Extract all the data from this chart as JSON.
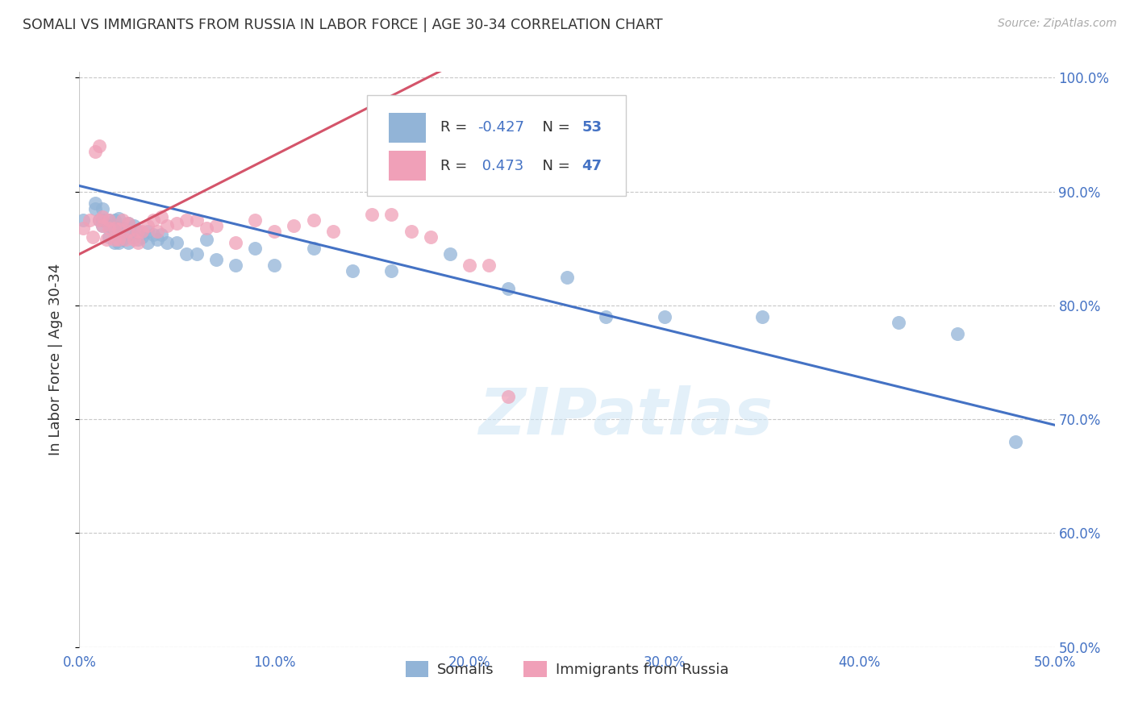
{
  "title": "SOMALI VS IMMIGRANTS FROM RUSSIA IN LABOR FORCE | AGE 30-34 CORRELATION CHART",
  "source": "Source: ZipAtlas.com",
  "ylabel": "In Labor Force | Age 30-34",
  "legend_labels": [
    "Somalis",
    "Immigrants from Russia"
  ],
  "R_somali": -0.427,
  "N_somali": 53,
  "R_russia": 0.473,
  "N_russia": 47,
  "x_min": 0.0,
  "x_max": 0.5,
  "y_min": 0.5,
  "y_max": 1.005,
  "x_ticks": [
    0.0,
    0.1,
    0.2,
    0.3,
    0.4,
    0.5
  ],
  "x_tick_labels": [
    "0.0%",
    "10.0%",
    "20.0%",
    "30.0%",
    "40.0%",
    "50.0%"
  ],
  "y_ticks": [
    0.5,
    0.6,
    0.7,
    0.8,
    0.9,
    1.0
  ],
  "y_tick_labels": [
    "50.0%",
    "60.0%",
    "70.0%",
    "80.0%",
    "90.0%",
    "100.0%"
  ],
  "background_color": "#ffffff",
  "grid_color": "#c8c8c8",
  "somali_color": "#92b4d7",
  "russia_color": "#f0a0b8",
  "somali_line_color": "#4472c4",
  "russia_line_color": "#d4546a",
  "watermark": "ZIPatlas",
  "somali_points_x": [
    0.002,
    0.008,
    0.008,
    0.01,
    0.012,
    0.012,
    0.012,
    0.015,
    0.015,
    0.015,
    0.018,
    0.018,
    0.018,
    0.02,
    0.02,
    0.02,
    0.02,
    0.022,
    0.022,
    0.025,
    0.025,
    0.025,
    0.028,
    0.028,
    0.03,
    0.03,
    0.032,
    0.035,
    0.035,
    0.038,
    0.04,
    0.042,
    0.045,
    0.05,
    0.055,
    0.06,
    0.065,
    0.07,
    0.08,
    0.09,
    0.1,
    0.12,
    0.14,
    0.16,
    0.19,
    0.22,
    0.25,
    0.27,
    0.3,
    0.35,
    0.42,
    0.45,
    0.48
  ],
  "somali_points_y": [
    0.875,
    0.885,
    0.89,
    0.875,
    0.87,
    0.875,
    0.885,
    0.86,
    0.87,
    0.875,
    0.855,
    0.865,
    0.875,
    0.855,
    0.862,
    0.868,
    0.876,
    0.858,
    0.868,
    0.855,
    0.862,
    0.872,
    0.86,
    0.87,
    0.858,
    0.865,
    0.86,
    0.855,
    0.865,
    0.862,
    0.858,
    0.862,
    0.855,
    0.855,
    0.845,
    0.845,
    0.858,
    0.84,
    0.835,
    0.85,
    0.835,
    0.85,
    0.83,
    0.83,
    0.845,
    0.815,
    0.825,
    0.79,
    0.79,
    0.79,
    0.785,
    0.775,
    0.68
  ],
  "russia_points_x": [
    0.002,
    0.005,
    0.007,
    0.008,
    0.01,
    0.01,
    0.012,
    0.012,
    0.014,
    0.015,
    0.015,
    0.018,
    0.018,
    0.02,
    0.02,
    0.022,
    0.024,
    0.025,
    0.025,
    0.028,
    0.03,
    0.03,
    0.032,
    0.035,
    0.038,
    0.04,
    0.042,
    0.045,
    0.05,
    0.055,
    0.06,
    0.065,
    0.07,
    0.08,
    0.09,
    0.1,
    0.11,
    0.12,
    0.13,
    0.15,
    0.16,
    0.17,
    0.18,
    0.19,
    0.2,
    0.21,
    0.22
  ],
  "russia_points_y": [
    0.868,
    0.875,
    0.86,
    0.935,
    0.94,
    0.875,
    0.87,
    0.878,
    0.858,
    0.868,
    0.875,
    0.858,
    0.868,
    0.858,
    0.867,
    0.875,
    0.858,
    0.865,
    0.872,
    0.858,
    0.855,
    0.865,
    0.865,
    0.87,
    0.875,
    0.865,
    0.878,
    0.87,
    0.872,
    0.875,
    0.875,
    0.868,
    0.87,
    0.855,
    0.875,
    0.865,
    0.87,
    0.875,
    0.865,
    0.88,
    0.88,
    0.865,
    0.86,
    0.92,
    0.835,
    0.835,
    0.72
  ],
  "somali_line_x": [
    0.0,
    0.5
  ],
  "somali_line_y": [
    0.905,
    0.695
  ],
  "russia_line_x": [
    0.0,
    0.19
  ],
  "russia_line_y": [
    0.845,
    1.01
  ]
}
